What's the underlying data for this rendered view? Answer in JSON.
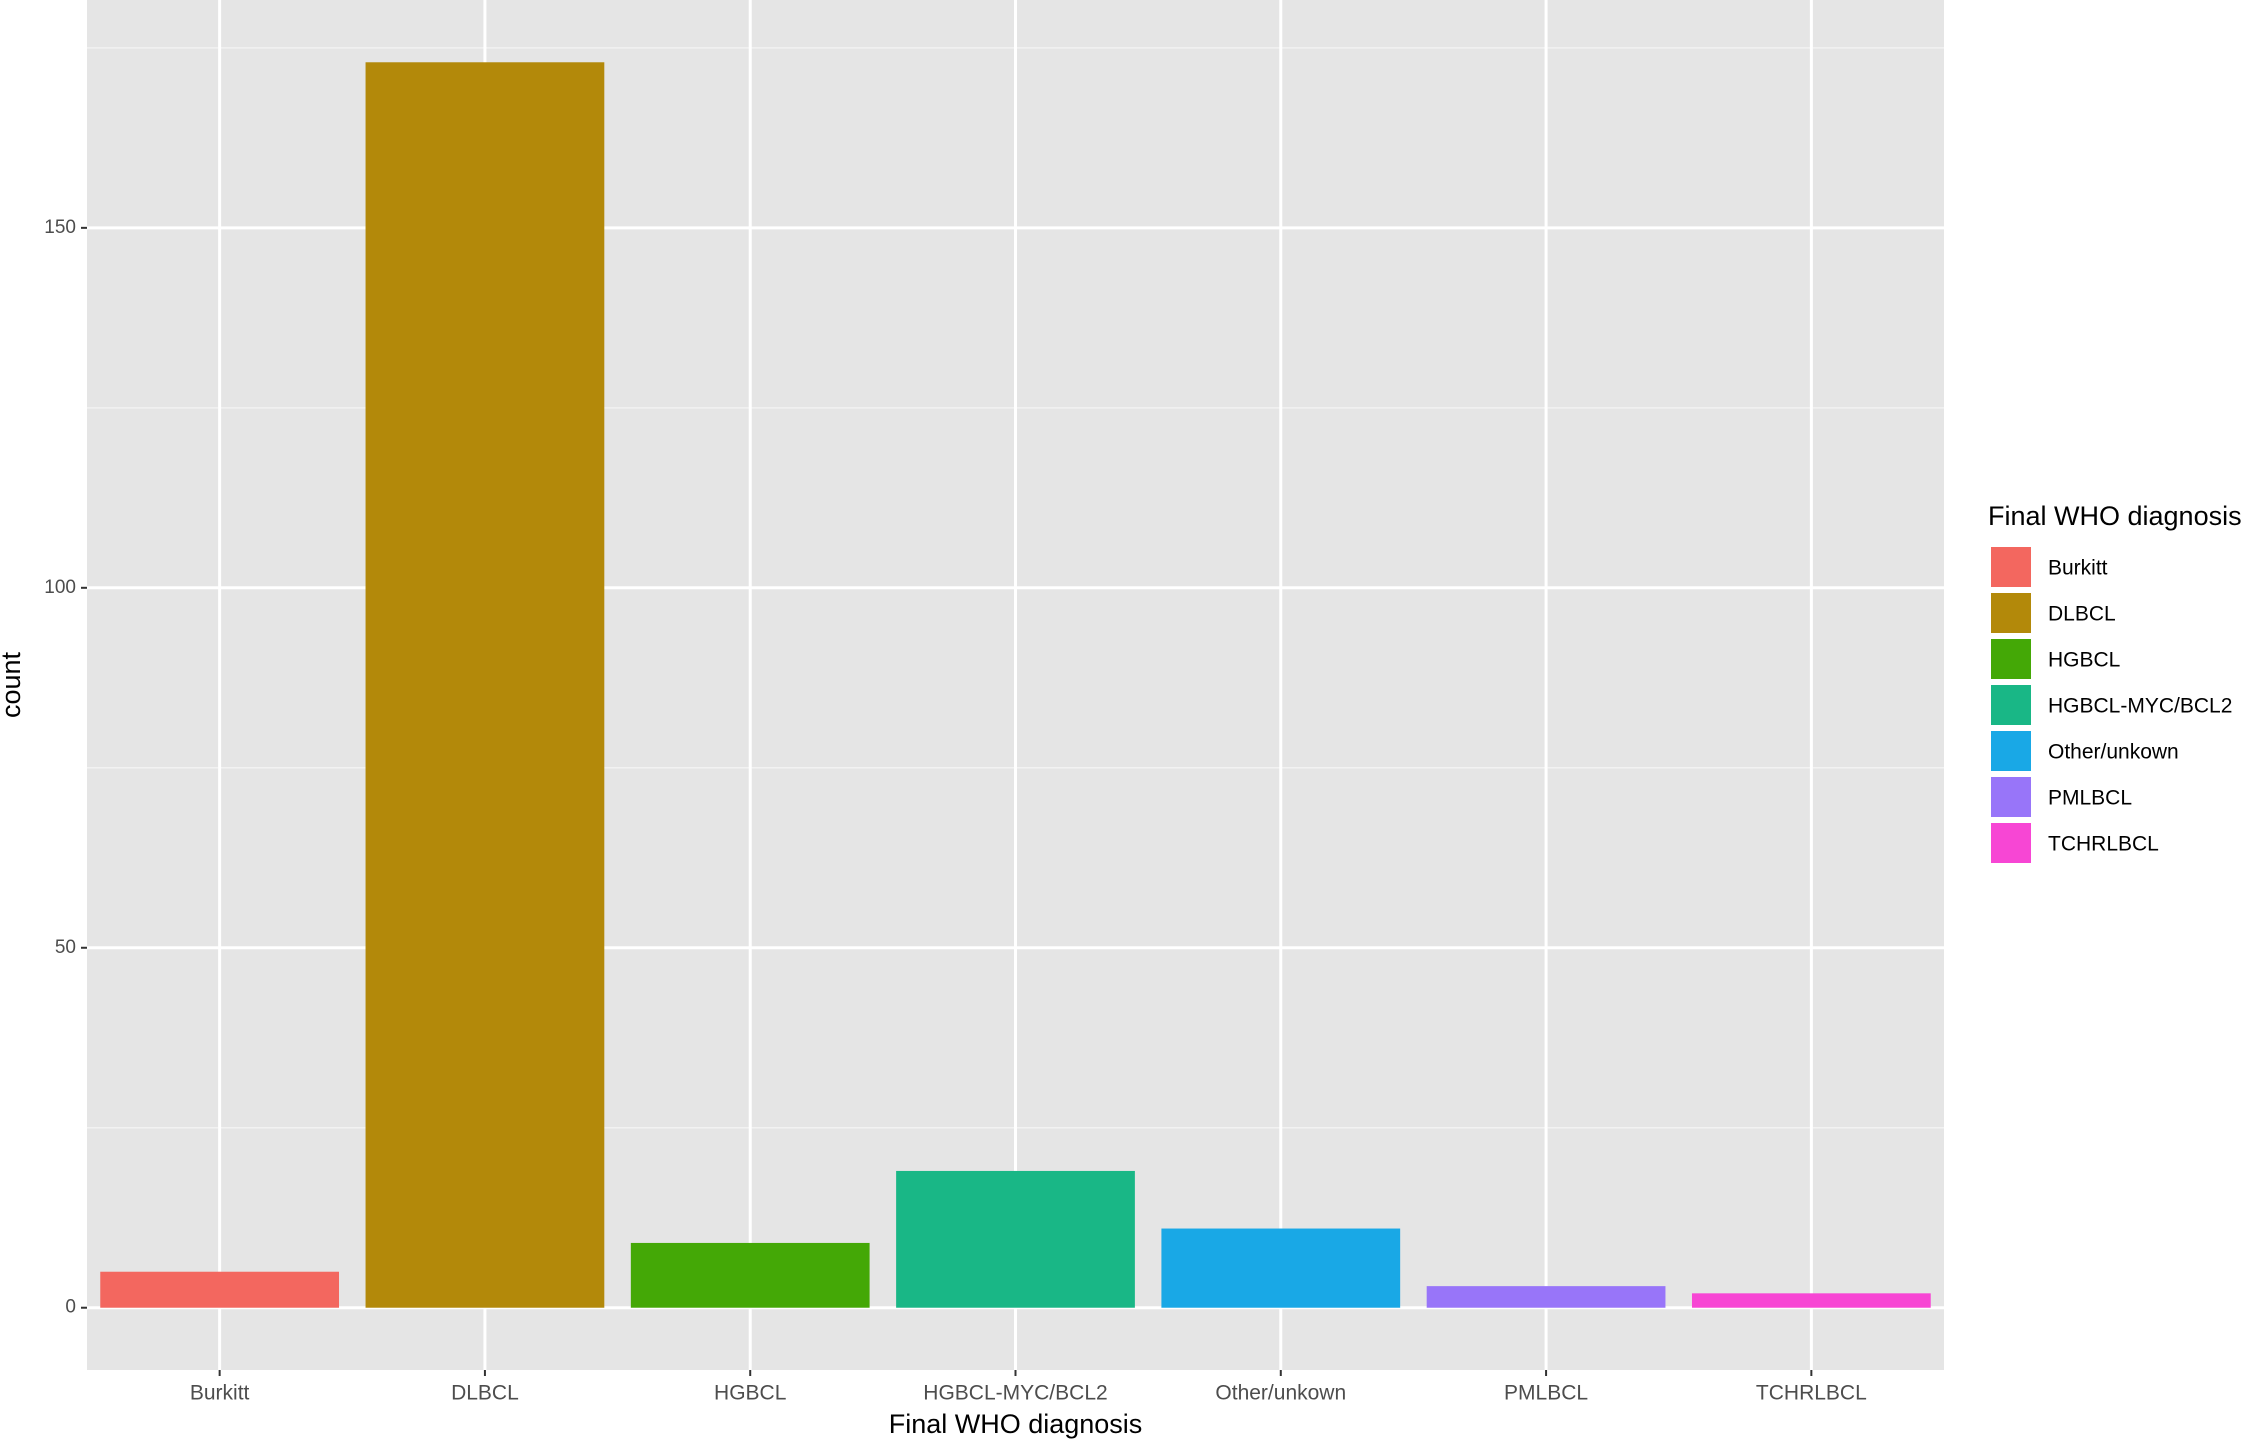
{
  "chart_data": {
    "type": "bar",
    "xlabel": "Final WHO diagnosis",
    "ylabel": "count",
    "legend_title": "Final WHO diagnosis",
    "categories": [
      "Burkitt",
      "DLBCL",
      "HGBCL",
      "HGBCL-MYC/BCL2",
      "Other/unkown",
      "PMLBCL",
      "TCHRLBCL"
    ],
    "values": [
      5,
      173,
      9,
      19,
      11,
      3,
      2
    ],
    "colors": [
      "#F3675F",
      "#B3890A",
      "#44A806",
      "#19B786",
      "#19A8E6",
      "#9875F9",
      "#F746D4"
    ],
    "ylim": [
      -8.65,
      181.65
    ],
    "yticks": [
      0,
      50,
      100,
      150
    ],
    "grid": true,
    "legend": "right"
  }
}
